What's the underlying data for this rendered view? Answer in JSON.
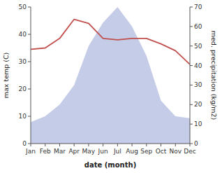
{
  "chart_data": {
    "type": "line",
    "x_label": "date (month)",
    "y_label": "max temp (C)",
    "y2_label": "med. precipitation (kg/m2)",
    "categories": [
      "Jan",
      "Feb",
      "Mar",
      "Apr",
      "May",
      "Jun",
      "Jul",
      "Aug",
      "Sep",
      "Oct",
      "Nov",
      "Dec"
    ],
    "series": [
      {
        "type": "area",
        "axis": "y2",
        "color": "#c5cce8",
        "values": [
          11,
          14,
          20,
          30,
          50,
          62,
          70,
          60,
          45,
          22,
          14,
          13
        ]
      },
      {
        "type": "line",
        "axis": "y",
        "color": "#c0504d",
        "values": [
          34.5,
          35.0,
          38.5,
          45.5,
          44.0,
          38.5,
          38.0,
          38.5,
          38.5,
          36.5,
          34.0,
          29.0
        ]
      }
    ],
    "ylim": [
      0,
      50
    ],
    "yticks": [
      0,
      10,
      20,
      30,
      40,
      50
    ],
    "y2lim": [
      0,
      70
    ],
    "y2ticks": [
      0,
      10,
      20,
      30,
      40,
      50,
      60,
      70
    ],
    "grid": false
  }
}
